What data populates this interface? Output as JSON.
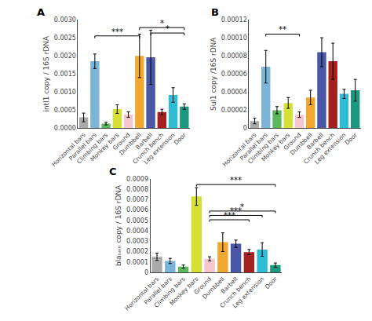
{
  "chart_data": [
    {
      "type": "bar",
      "title": "A",
      "ylabel": "intI1 copy / 16S rDNA",
      "categories": [
        "Horizontal bars",
        "Parallel bars",
        "Climbing bars",
        "Monkey bars",
        "Ground",
        "Dumbbell",
        "Barbell",
        "Crunch bench",
        "Leg extension",
        "Door"
      ],
      "values": [
        0.0003,
        0.00185,
        0.00013,
        0.00053,
        0.00038,
        0.002,
        0.00196,
        0.00045,
        0.00092,
        0.0006
      ],
      "errors": [
        0.00012,
        0.0002,
        3.5e-05,
        0.00012,
        7.5e-05,
        0.0006,
        0.00075,
        7.5e-05,
        0.0002,
        7.5e-05
      ],
      "colors": [
        "#aaaaaa",
        "#7ab5d8",
        "#5cb85c",
        "#d4e034",
        "#f5c5d0",
        "#f0a830",
        "#4a56a6",
        "#a52020",
        "#30bcd4",
        "#1a9980"
      ],
      "ylim": [
        0,
        0.003
      ],
      "yticks": [
        {
          "value": 0,
          "label": "0.0000"
        },
        0.0005,
        {
          "value": 0.001,
          "label": "0.0010"
        },
        0.0015,
        {
          "value": 0.002,
          "label": "0.0020"
        },
        0.0025,
        {
          "value": 0.003,
          "label": "0.0030"
        }
      ],
      "grid": false,
      "annotations": [
        {
          "text": "***",
          "from": "Parallel bars",
          "to": "Dumbbell",
          "y": 0.00255
        },
        {
          "text": "*",
          "from": "Dumbbell",
          "to": "Door",
          "y": 0.00278
        },
        {
          "text": "*",
          "from": "Barbell",
          "to": "Door",
          "y": 0.00263
        }
      ]
    },
    {
      "type": "bar",
      "title": "B",
      "ylabel": "Sul1 copy /16S rDNA",
      "categories": [
        "Horizontal bars",
        "Parallel bars",
        "Climbing bars",
        "Monkey bars",
        "Ground",
        "Dumbbell",
        "Barbell",
        "Crunch bench",
        "Leg extension",
        "Door"
      ],
      "values": [
        8e-06,
        6.8e-05,
        2e-05,
        2.8e-05,
        1.5e-05,
        3.4e-05,
        8.4e-05,
        7.4e-05,
        3.8e-05,
        4.2e-05
      ],
      "errors": [
        3e-06,
        1.8e-05,
        4e-06,
        6e-06,
        3e-06,
        8e-06,
        1.6e-05,
        2e-05,
        5e-06,
        1.2e-05
      ],
      "colors": [
        "#aaaaaa",
        "#7ab5d8",
        "#5cb85c",
        "#d4e034",
        "#f5c5d0",
        "#f0a830",
        "#4a56a6",
        "#a52020",
        "#30bcd4",
        "#1a9980"
      ],
      "ylim": [
        0,
        0.00012
      ],
      "yticks": [
        0,
        2e-05,
        4e-05,
        6e-05,
        8e-05,
        {
          "value": 0.0001,
          "label": "0.00010"
        },
        0.00012
      ],
      "grid": false,
      "annotations": [
        {
          "text": "**",
          "from": "Parallel bars",
          "to": "Ground",
          "y": 0.000104
        }
      ]
    },
    {
      "type": "bar",
      "title": "C",
      "ylabel": "blaₙₑₘ copy / 16S rDNA",
      "categories": [
        "Horizontal bars",
        "Parallel bars",
        "Climbing bars",
        "Monkey bars",
        "Ground",
        "Dumbbell",
        "Barbell",
        "Crunch bench",
        "Leg extension",
        "Door"
      ],
      "values": [
        0.00015,
        0.00011,
        5.5e-05,
        0.00073,
        0.00013,
        0.00029,
        0.000275,
        0.000195,
        0.00022,
        7e-05
      ],
      "errors": [
        3.5e-05,
        2.5e-05,
        1.5e-05,
        8.5e-05,
        2e-05,
        9e-05,
        3.5e-05,
        2.5e-05,
        6.5e-05,
        2e-05
      ],
      "colors": [
        "#aaaaaa",
        "#7ab5d8",
        "#5cb85c",
        "#d4e034",
        "#f5c5d0",
        "#f0a830",
        "#4a56a6",
        "#a52020",
        "#30bcd4",
        "#1a9980"
      ],
      "ylim": [
        0,
        0.0009
      ],
      "yticks": [
        0,
        0.0001,
        0.0002,
        0.0003,
        0.0004,
        0.0005,
        0.0006,
        0.0007,
        0.0008,
        0.0009
      ],
      "grid": false,
      "annotations": [
        {
          "text": "***",
          "from": "Monkey bars",
          "to": "Door",
          "y": 0.000845
        },
        {
          "text": "*",
          "from": "Ground",
          "to": "Door",
          "y": 0.00059
        },
        {
          "text": "***",
          "from": "Ground",
          "to": "Leg extension",
          "y": 0.000548
        },
        {
          "text": "***",
          "from": "Ground",
          "to": "Crunch bench",
          "y": 0.000506
        }
      ]
    }
  ]
}
